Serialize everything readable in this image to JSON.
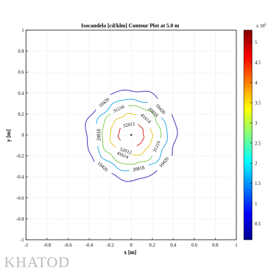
{
  "chart_data": {
    "type": "contour",
    "title": "Isocandela [cd/klm] Contour Plot at 5.0 m",
    "xlabel": "x [m]",
    "ylabel": "y [m]",
    "xlim": [
      -1,
      1
    ],
    "ylim": [
      -1,
      1
    ],
    "xticks": [
      "-1",
      "-0.8",
      "-0.6",
      "-0.4",
      "-0.2",
      "0",
      "0.2",
      "0.4",
      "0.6",
      "0.8",
      "1"
    ],
    "yticks": [
      "-1",
      "-0.8",
      "-0.6",
      "-0.4",
      "-0.2",
      "0",
      "0.2",
      "0.4",
      "0.6",
      "0.8",
      "1"
    ],
    "grid": true,
    "colorbar": {
      "label": "x 10",
      "exponent": "5",
      "range": [
        0.1,
        5.3
      ],
      "ticks": [
        "0.5",
        "1",
        "1.5",
        "2",
        "2.5",
        "3",
        "3.5",
        "4",
        "4.5",
        "5"
      ]
    },
    "series": [
      {
        "level": 10420,
        "color": "#3a2fb8",
        "radius": 0.43,
        "labels": [
          {
            "text": "10420",
            "x": -0.26,
            "y": 0.31
          },
          {
            "text": "10420",
            "x": 0.28,
            "y": 0.25
          },
          {
            "text": "10420",
            "x": -0.27,
            "y": -0.3
          },
          {
            "text": "10420",
            "x": 0.31,
            "y": -0.26
          }
        ]
      },
      {
        "level": 20818,
        "color": "#21a8e0",
        "radius": 0.34,
        "labels": [
          {
            "text": "20818",
            "x": 0.21,
            "y": 0.22
          },
          {
            "text": "20818",
            "x": -0.31,
            "y": 0.0
          },
          {
            "text": "20818",
            "x": 0.07,
            "y": -0.32
          }
        ]
      },
      {
        "level": 31216,
        "color": "#7ec84a",
        "radius": 0.28,
        "labels": [
          {
            "text": "31216",
            "x": -0.12,
            "y": 0.25
          },
          {
            "text": "31216",
            "x": 0.24,
            "y": -0.11
          }
        ]
      },
      {
        "level": 41614,
        "color": "#e8c620",
        "radius": 0.2,
        "labels": [
          {
            "text": "41614",
            "x": 0.14,
            "y": 0.16
          },
          {
            "text": "41614",
            "x": -0.08,
            "y": -0.19
          }
        ]
      },
      {
        "level": 52012,
        "color": "#d42020",
        "radius": 0.12,
        "labels": [
          {
            "text": "52012",
            "x": -0.02,
            "y": 0.1
          },
          {
            "text": "52012",
            "x": -0.05,
            "y": -0.15
          }
        ]
      }
    ]
  },
  "brand": {
    "text": "KHATOD"
  }
}
